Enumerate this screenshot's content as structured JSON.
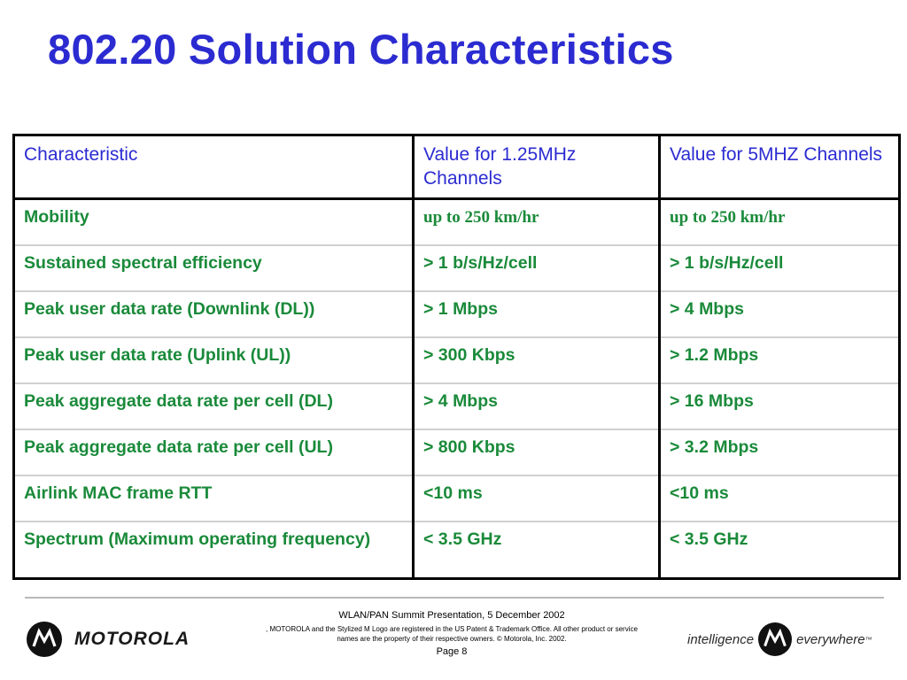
{
  "slide": {
    "title": "802.20 Solution Characteristics"
  },
  "table": {
    "headers": [
      "Characteristic",
      "Value for 1.25MHz Channels",
      "Value for 5MHZ Channels"
    ],
    "rows": [
      [
        "Mobility",
        "up to 250 km/hr",
        "up to 250 km/hr"
      ],
      [
        "Sustained spectral efficiency",
        "> 1 b/s/Hz/cell",
        "> 1 b/s/Hz/cell"
      ],
      [
        "Peak user data rate (Downlink (DL))",
        "> 1 Mbps",
        "> 4 Mbps"
      ],
      [
        "Peak user data rate (Uplink (UL))",
        "> 300 Kbps",
        "> 1.2 Mbps"
      ],
      [
        "Peak aggregate data rate per cell (DL)",
        "> 4 Mbps",
        "> 16 Mbps"
      ],
      [
        "Peak aggregate data rate per cell (UL)",
        "> 800 Kbps",
        "> 3.2 Mbps"
      ],
      [
        "Airlink MAC frame RTT",
        "<10 ms",
        "<10 ms"
      ],
      [
        "Spectrum (Maximum operating frequency)",
        "< 3.5 GHz",
        "< 3.5 GHz"
      ]
    ]
  },
  "footer": {
    "logo_text": "MOTOROLA",
    "presentation": "WLAN/PAN Summit Presentation, 5 December 2002",
    "legal": ", MOTOROLA and the Stylized M Logo are registered in the US Patent & Trademark Office. All other product or service names are the property of their respective owners.  © Motorola, Inc. 2002.",
    "page": "Page 8",
    "tagline_left": "intelligence",
    "tagline_right": "everywhere",
    "tagline_tm": "™"
  },
  "colors": {
    "title": "#2b2bd1",
    "header_text": "#2b2bd1",
    "body_text": "#1a8a3a"
  },
  "icons": {
    "logo": "motorola-m-logo-icon"
  }
}
